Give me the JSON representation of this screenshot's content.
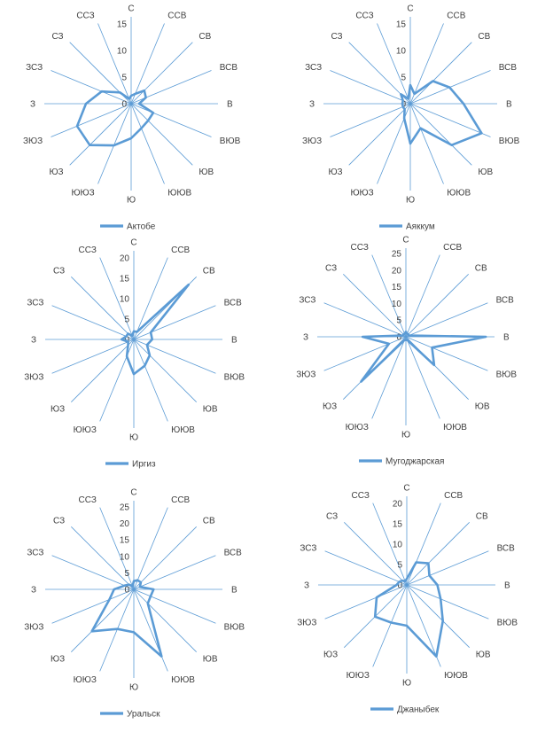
{
  "chart_data": [
    {
      "type": "radar",
      "title": "",
      "directions": [
        "С",
        "ССВ",
        "СВ",
        "ВСВ",
        "В",
        "ВЮВ",
        "ЮВ",
        "ЮЮВ",
        "Ю",
        "ЮЮЗ",
        "ЮЗ",
        "ЗЮЗ",
        "З",
        "ЗСЗ",
        "СЗ",
        "ССЗ"
      ],
      "ticks": [
        0,
        5,
        10,
        15
      ],
      "rmax": 15,
      "legend_position": "bottom",
      "series": [
        {
          "name": "Актобе",
          "values": [
            1.5,
            2,
            3.5,
            3,
            1.5,
            4.5,
            4.5,
            5,
            6.5,
            8.5,
            11,
            11,
            8.5,
            6,
            3,
            1
          ]
        }
      ]
    },
    {
      "type": "radar",
      "title": "",
      "directions": [
        "С",
        "ССВ",
        "СВ",
        "ВСВ",
        "В",
        "ВЮВ",
        "ЮВ",
        "ЮЮВ",
        "Ю",
        "ЮЮЗ",
        "ЮЗ",
        "ЗЮЗ",
        "З",
        "ЗСЗ",
        "СЗ",
        "ССЗ"
      ],
      "ticks": [
        0,
        5,
        10,
        15
      ],
      "rmax": 15,
      "legend_position": "bottom",
      "series": [
        {
          "name": "Аяккум",
          "values": [
            3.5,
            2,
            6,
            8,
            10,
            14.5,
            11,
            5,
            7.5,
            3,
            1.5,
            1.5,
            1.5,
            1.5,
            2.5,
            1
          ]
        }
      ]
    },
    {
      "type": "radar",
      "title": "",
      "directions": [
        "С",
        "ССВ",
        "СВ",
        "ВСВ",
        "В",
        "ВЮВ",
        "ЮВ",
        "ЮЮВ",
        "Ю",
        "ЮЮЗ",
        "ЮЗ",
        "ЗЮЗ",
        "З",
        "ЗСЗ",
        "СЗ",
        "ССЗ"
      ],
      "ticks": [
        0,
        5,
        10,
        15,
        20
      ],
      "rmax": 20,
      "legend_position": "bottom",
      "series": [
        {
          "name": "Иргиз",
          "values": [
            2,
            2,
            19,
            4.5,
            4.5,
            3.5,
            5.5,
            7,
            8.5,
            4.5,
            2,
            1.5,
            3,
            2,
            2,
            1
          ]
        }
      ]
    },
    {
      "type": "radar",
      "title": "",
      "directions": [
        "С",
        "ССВ",
        "СВ",
        "ВСВ",
        "В",
        "ВЮВ",
        "ЮВ",
        "ЮЮВ",
        "Ю",
        "ЮЮЗ",
        "ЮЗ",
        "ЗЮЗ",
        "З",
        "ЗСЗ",
        "СЗ",
        "ССЗ"
      ],
      "ticks": [
        0,
        5,
        10,
        15,
        20,
        25
      ],
      "rmax": 25,
      "legend_position": "bottom",
      "series": [
        {
          "name": "Мугоджарская",
          "values": [
            1.5,
            1,
            1,
            1,
            24,
            8.5,
            12,
            1,
            1,
            1,
            19,
            5.5,
            13,
            1,
            1,
            1
          ]
        }
      ]
    },
    {
      "type": "radar",
      "title": "",
      "directions": [
        "С",
        "ССВ",
        "СВ",
        "ВСВ",
        "В",
        "ВЮВ",
        "ЮВ",
        "ЮЮВ",
        "Ю",
        "ЮЮЗ",
        "ЮЗ",
        "ЗЮЗ",
        "З",
        "ЗСЗ",
        "СЗ",
        "ССЗ"
      ],
      "ticks": [
        0,
        5,
        10,
        15,
        20,
        25
      ],
      "rmax": 25,
      "legend_position": "bottom",
      "series": [
        {
          "name": "Уральск",
          "values": [
            2.5,
            3,
            3,
            2,
            6,
            5.5,
            6,
            22,
            13,
            13,
            18,
            8,
            6,
            3,
            2,
            1
          ]
        }
      ]
    },
    {
      "type": "radar",
      "title": "",
      "directions": [
        "С",
        "ССВ",
        "СВ",
        "ВСВ",
        "В",
        "ВЮВ",
        "ЮВ",
        "ЮЮВ",
        "Ю",
        "ЮЮЗ",
        "ЮЗ",
        "ЗЮЗ",
        "З",
        "ЗСЗ",
        "СЗ",
        "ССЗ"
      ],
      "ticks": [
        0,
        5,
        10,
        15,
        20
      ],
      "rmax": 20,
      "legend_position": "bottom",
      "series": [
        {
          "name": "Джаныбек",
          "values": [
            1.5,
            6,
            7.5,
            6,
            7.5,
            9,
            12.5,
            19,
            10,
            10,
            11,
            8,
            2.5,
            2,
            1.5,
            1
          ]
        }
      ]
    }
  ]
}
